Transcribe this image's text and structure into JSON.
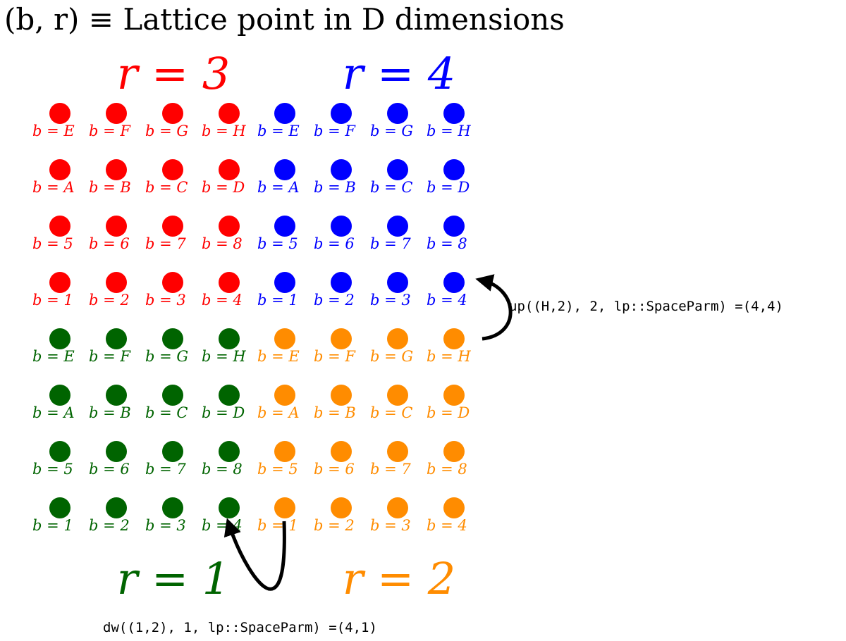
{
  "title": "(b, r) ≡ Lattice point in D dimensions",
  "colors": {
    "r1": "#006400",
    "r2": "#ff8c00",
    "r3": "#ff0000",
    "r4": "#0000ff",
    "arrow": "#000000"
  },
  "quadrants": [
    {
      "label": "r = 3",
      "color_key": "r3",
      "rows": [
        [
          "b = E",
          "b = F",
          "b = G",
          "b = H"
        ],
        [
          "b = A",
          "b = B",
          "b = C",
          "b = D"
        ],
        [
          "b = 5",
          "b = 6",
          "b = 7",
          "b = 8"
        ],
        [
          "b = 1",
          "b = 2",
          "b = 3",
          "b = 4"
        ]
      ]
    },
    {
      "label": "r = 4",
      "color_key": "r4",
      "rows": [
        [
          "b = E",
          "b = F",
          "b = G",
          "b = H"
        ],
        [
          "b = A",
          "b = B",
          "b = C",
          "b = D"
        ],
        [
          "b = 5",
          "b = 6",
          "b = 7",
          "b = 8"
        ],
        [
          "b = 1",
          "b = 2",
          "b = 3",
          "b = 4"
        ]
      ]
    },
    {
      "label": "r = 1",
      "color_key": "r1",
      "rows": [
        [
          "b = E",
          "b = F",
          "b = G",
          "b = H"
        ],
        [
          "b = A",
          "b = B",
          "b = C",
          "b = D"
        ],
        [
          "b = 5",
          "b = 6",
          "b = 7",
          "b = 8"
        ],
        [
          "b = 1",
          "b = 2",
          "b = 3",
          "b = 4"
        ]
      ]
    },
    {
      "label": "r = 2",
      "color_key": "r2",
      "rows": [
        [
          "b = E",
          "b = F",
          "b = G",
          "b = H"
        ],
        [
          "b = A",
          "b = B",
          "b = C",
          "b = D"
        ],
        [
          "b = 5",
          "b = 6",
          "b = 7",
          "b = 8"
        ],
        [
          "b = 1",
          "b = 2",
          "b = 3",
          "b = 4"
        ]
      ]
    }
  ],
  "annotations": {
    "up": "up((H,2), 2, lp::SpaceParm) =(4,4)",
    "dw": "dw((1,2), 1, lp::SpaceParm) =(4,1)"
  }
}
